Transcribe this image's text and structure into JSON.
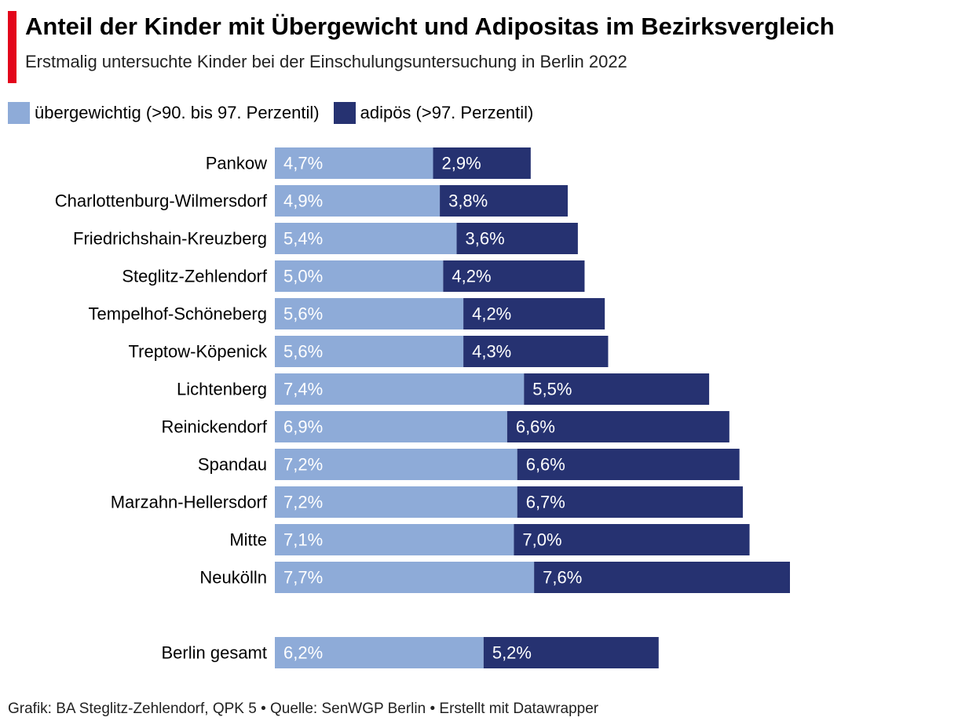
{
  "header": {
    "title": "Anteil der Kinder mit Übergewicht und Adipositas im Bezirksvergleich",
    "subtitle": "Erstmalig untersuchte Kinder bei der Einschulungsuntersuchung in Berlin 2022"
  },
  "colors": {
    "accent": "#e3051b",
    "light": "#8eabd8",
    "dark": "#263271"
  },
  "chart_data": {
    "type": "bar",
    "orientation": "horizontal",
    "stacked": true,
    "title": "Anteil der Kinder mit Übergewicht und Adipositas im Bezirksvergleich",
    "subtitle": "Erstmalig untersuchte Kinder bei der Einschulungsuntersuchung in Berlin 2022",
    "categories": [
      "Pankow",
      "Charlottenburg-Wilmersdorf",
      "Friedrichshain-Kreuzberg",
      "Steglitz-Zehlendorf",
      "Tempelhof-Schöneberg",
      "Treptow-Köpenick",
      "Lichtenberg",
      "Reinickendorf",
      "Spandau",
      "Marzahn-Hellersdorf",
      "Mitte",
      "Neukölln",
      "Berlin gesamt"
    ],
    "series": [
      {
        "name": "übergewichtig (>90. bis 97. Perzentil)",
        "values": [
          4.7,
          4.9,
          5.4,
          5.0,
          5.6,
          5.6,
          7.4,
          6.9,
          7.2,
          7.2,
          7.1,
          7.7,
          6.2
        ],
        "labels": [
          "4,7%",
          "4,9%",
          "5,4%",
          "5,0%",
          "5,6%",
          "5,6%",
          "7,4%",
          "6,9%",
          "7,2%",
          "7,2%",
          "7,1%",
          "7,7%",
          "6,2%"
        ]
      },
      {
        "name": "adipös (>97. Perzentil)",
        "values": [
          2.9,
          3.8,
          3.6,
          4.2,
          4.2,
          4.3,
          5.5,
          6.6,
          6.6,
          6.7,
          7.0,
          7.6,
          5.2
        ],
        "labels": [
          "2,9%",
          "3,8%",
          "3,6%",
          "4,2%",
          "4,2%",
          "4,3%",
          "5,5%",
          "6,6%",
          "6,6%",
          "6,7%",
          "7,0%",
          "7,6%",
          "5,2%"
        ]
      }
    ],
    "xlim": [
      0,
      15.3
    ],
    "legend": "top-left"
  },
  "footer": {
    "text": "Grafik: BA Steglitz-Zehlendorf, QPK 5 • Quelle: SenWGP Berlin • Erstellt mit Datawrapper"
  }
}
